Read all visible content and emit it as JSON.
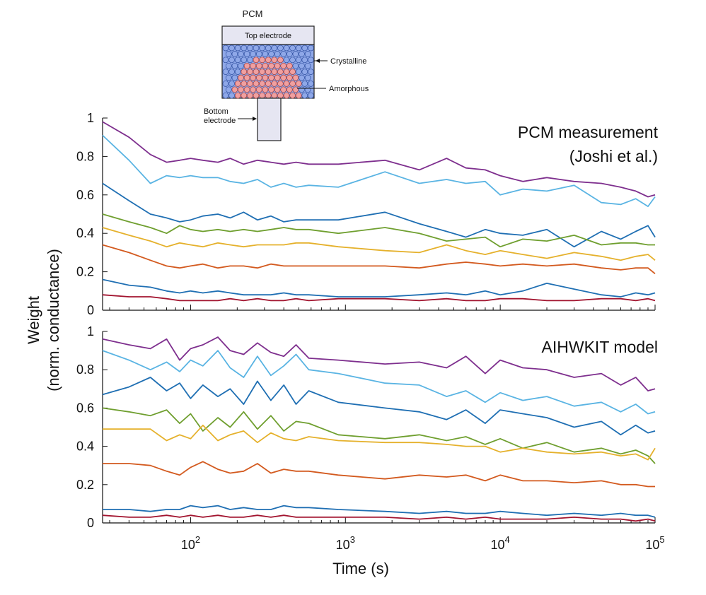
{
  "inset": {
    "title": "PCM",
    "top_electrode": "Top electrode",
    "bottom_electrode_line1": "Bottom",
    "bottom_electrode_line2": "electrode",
    "crystalline": "Crystalline",
    "amorphous": "Amorphous",
    "colors": {
      "crystalline": "#8fa8e8",
      "amorphous": "#f0a0a0",
      "electrode": "#e6e6f2"
    }
  },
  "shared_axes": {
    "ylabel_line1": "Weight",
    "ylabel_line2": "(norm. conductance)",
    "xlabel": "Time (s)",
    "x_scale": "log",
    "xlim": [
      27,
      100000
    ],
    "ylim": [
      0,
      1
    ],
    "yticks": [
      0,
      0.2,
      0.4,
      0.6,
      0.8,
      1
    ],
    "ytick_labels": [
      "0",
      "0.2",
      "0.4",
      "0.6",
      "0.8",
      "1"
    ],
    "xticks": [
      100,
      1000,
      10000,
      100000
    ],
    "xtick_labels": [
      {
        "base": "10",
        "exp": "2"
      },
      {
        "base": "10",
        "exp": "3"
      },
      {
        "base": "10",
        "exp": "4"
      },
      {
        "base": "10",
        "exp": "5"
      }
    ],
    "grid": false,
    "legend": "none"
  },
  "series_colors": [
    "#7e2f8e",
    "#5ab4e3",
    "#1f6fb3",
    "#6f9f2f",
    "#e5b12c",
    "#d35a1f",
    "#1f6fb3",
    "#a2142f"
  ],
  "chart_data": [
    {
      "type": "line",
      "title": "PCM measurement",
      "subtitle": "(Joshi et al.)",
      "x": [
        27,
        40,
        55,
        70,
        85,
        100,
        120,
        150,
        180,
        220,
        270,
        330,
        400,
        480,
        580,
        900,
        1800,
        3000,
        4500,
        6000,
        8000,
        10000,
        14000,
        20000,
        30000,
        45000,
        60000,
        75000,
        90000,
        100000
      ],
      "series": [
        {
          "values": [
            0.98,
            0.9,
            0.81,
            0.77,
            0.78,
            0.79,
            0.78,
            0.77,
            0.79,
            0.76,
            0.78,
            0.77,
            0.76,
            0.77,
            0.76,
            0.76,
            0.78,
            0.73,
            0.79,
            0.74,
            0.73,
            0.7,
            0.67,
            0.69,
            0.67,
            0.66,
            0.64,
            0.62,
            0.59,
            0.6
          ]
        },
        {
          "values": [
            0.91,
            0.78,
            0.66,
            0.7,
            0.69,
            0.7,
            0.69,
            0.69,
            0.67,
            0.66,
            0.68,
            0.64,
            0.66,
            0.64,
            0.65,
            0.64,
            0.72,
            0.66,
            0.68,
            0.66,
            0.67,
            0.6,
            0.63,
            0.62,
            0.65,
            0.56,
            0.55,
            0.58,
            0.54,
            0.59
          ]
        },
        {
          "values": [
            0.66,
            0.57,
            0.5,
            0.48,
            0.46,
            0.47,
            0.49,
            0.5,
            0.48,
            0.51,
            0.47,
            0.49,
            0.46,
            0.47,
            0.47,
            0.47,
            0.51,
            0.45,
            0.41,
            0.38,
            0.42,
            0.4,
            0.39,
            0.42,
            0.33,
            0.41,
            0.37,
            0.41,
            0.44,
            0.38
          ]
        },
        {
          "values": [
            0.5,
            0.46,
            0.43,
            0.4,
            0.44,
            0.42,
            0.41,
            0.42,
            0.41,
            0.42,
            0.41,
            0.42,
            0.43,
            0.42,
            0.42,
            0.4,
            0.43,
            0.4,
            0.36,
            0.37,
            0.38,
            0.33,
            0.37,
            0.36,
            0.39,
            0.34,
            0.35,
            0.35,
            0.34,
            0.34
          ]
        },
        {
          "values": [
            0.43,
            0.39,
            0.36,
            0.33,
            0.35,
            0.34,
            0.33,
            0.35,
            0.34,
            0.33,
            0.34,
            0.34,
            0.34,
            0.35,
            0.35,
            0.33,
            0.31,
            0.3,
            0.34,
            0.31,
            0.29,
            0.31,
            0.29,
            0.27,
            0.3,
            0.28,
            0.26,
            0.28,
            0.29,
            0.26
          ]
        },
        {
          "values": [
            0.34,
            0.3,
            0.26,
            0.23,
            0.22,
            0.23,
            0.24,
            0.22,
            0.23,
            0.23,
            0.22,
            0.24,
            0.23,
            0.23,
            0.23,
            0.23,
            0.23,
            0.22,
            0.24,
            0.25,
            0.24,
            0.23,
            0.24,
            0.23,
            0.24,
            0.22,
            0.21,
            0.22,
            0.22,
            0.19
          ]
        },
        {
          "values": [
            0.16,
            0.13,
            0.12,
            0.1,
            0.09,
            0.1,
            0.09,
            0.1,
            0.09,
            0.08,
            0.08,
            0.08,
            0.09,
            0.08,
            0.08,
            0.07,
            0.07,
            0.08,
            0.09,
            0.08,
            0.1,
            0.08,
            0.1,
            0.14,
            0.11,
            0.08,
            0.07,
            0.09,
            0.08,
            0.09
          ]
        },
        {
          "values": [
            0.08,
            0.07,
            0.07,
            0.06,
            0.05,
            0.05,
            0.05,
            0.05,
            0.06,
            0.05,
            0.06,
            0.05,
            0.05,
            0.06,
            0.05,
            0.06,
            0.06,
            0.05,
            0.06,
            0.05,
            0.05,
            0.06,
            0.06,
            0.05,
            0.05,
            0.06,
            0.06,
            0.05,
            0.06,
            0.05
          ]
        }
      ]
    },
    {
      "type": "line",
      "title": "AIHWKIT model",
      "x": [
        27,
        40,
        55,
        70,
        85,
        100,
        120,
        150,
        180,
        220,
        270,
        330,
        400,
        480,
        580,
        900,
        1800,
        3000,
        4500,
        6000,
        8000,
        10000,
        14000,
        20000,
        30000,
        45000,
        60000,
        75000,
        90000,
        100000
      ],
      "series": [
        {
          "values": [
            0.96,
            0.93,
            0.91,
            0.96,
            0.85,
            0.91,
            0.93,
            0.97,
            0.9,
            0.88,
            0.94,
            0.89,
            0.87,
            0.93,
            0.86,
            0.85,
            0.83,
            0.84,
            0.81,
            0.87,
            0.78,
            0.85,
            0.81,
            0.8,
            0.76,
            0.78,
            0.72,
            0.76,
            0.69,
            0.7
          ]
        },
        {
          "values": [
            0.9,
            0.85,
            0.8,
            0.84,
            0.79,
            0.85,
            0.82,
            0.9,
            0.81,
            0.76,
            0.87,
            0.77,
            0.82,
            0.88,
            0.8,
            0.78,
            0.73,
            0.72,
            0.66,
            0.69,
            0.63,
            0.68,
            0.64,
            0.66,
            0.61,
            0.63,
            0.58,
            0.62,
            0.57,
            0.58
          ]
        },
        {
          "values": [
            0.67,
            0.71,
            0.76,
            0.69,
            0.73,
            0.65,
            0.72,
            0.66,
            0.7,
            0.62,
            0.74,
            0.64,
            0.72,
            0.62,
            0.69,
            0.63,
            0.6,
            0.58,
            0.54,
            0.59,
            0.52,
            0.59,
            0.57,
            0.55,
            0.5,
            0.53,
            0.46,
            0.51,
            0.47,
            0.48
          ]
        },
        {
          "values": [
            0.6,
            0.58,
            0.56,
            0.59,
            0.52,
            0.57,
            0.48,
            0.55,
            0.5,
            0.58,
            0.49,
            0.56,
            0.48,
            0.53,
            0.52,
            0.46,
            0.44,
            0.46,
            0.43,
            0.45,
            0.41,
            0.44,
            0.39,
            0.42,
            0.37,
            0.39,
            0.36,
            0.38,
            0.35,
            0.31
          ]
        },
        {
          "values": [
            0.49,
            0.49,
            0.49,
            0.43,
            0.46,
            0.44,
            0.51,
            0.43,
            0.46,
            0.48,
            0.42,
            0.47,
            0.44,
            0.43,
            0.45,
            0.43,
            0.42,
            0.42,
            0.41,
            0.4,
            0.4,
            0.37,
            0.39,
            0.37,
            0.36,
            0.37,
            0.35,
            0.36,
            0.33,
            0.39
          ]
        },
        {
          "values": [
            0.31,
            0.31,
            0.3,
            0.27,
            0.25,
            0.29,
            0.32,
            0.28,
            0.26,
            0.27,
            0.31,
            0.26,
            0.28,
            0.27,
            0.27,
            0.25,
            0.23,
            0.25,
            0.24,
            0.25,
            0.22,
            0.25,
            0.22,
            0.22,
            0.21,
            0.22,
            0.2,
            0.2,
            0.19,
            0.19
          ]
        },
        {
          "values": [
            0.07,
            0.07,
            0.06,
            0.07,
            0.07,
            0.09,
            0.08,
            0.09,
            0.07,
            0.08,
            0.07,
            0.07,
            0.09,
            0.08,
            0.08,
            0.07,
            0.06,
            0.05,
            0.06,
            0.05,
            0.05,
            0.06,
            0.05,
            0.04,
            0.05,
            0.04,
            0.05,
            0.04,
            0.04,
            0.03
          ]
        },
        {
          "values": [
            0.04,
            0.03,
            0.03,
            0.04,
            0.03,
            0.04,
            0.03,
            0.04,
            0.03,
            0.03,
            0.04,
            0.03,
            0.04,
            0.03,
            0.03,
            0.03,
            0.03,
            0.02,
            0.03,
            0.02,
            0.03,
            0.02,
            0.02,
            0.02,
            0.03,
            0.02,
            0.02,
            0.01,
            0.02,
            0.01
          ]
        }
      ]
    }
  ]
}
